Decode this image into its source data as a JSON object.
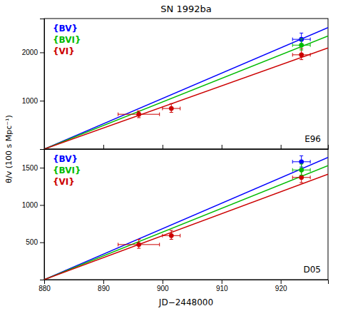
{
  "chart_data": [
    {
      "type": "line",
      "title": "SN 1992ba",
      "ylabel": "θ/v  (100 s Mpc⁻¹)",
      "xlim": [
        880,
        928
      ],
      "xticks": [
        880,
        890,
        900,
        910,
        920
      ],
      "ylim": [
        0,
        2700
      ],
      "yticks": [
        1000,
        2000
      ],
      "tick_labels": "y",
      "legend": "upper left",
      "annotations": [
        "E96"
      ],
      "series": [
        {
          "name": "{BV}",
          "type": "line",
          "color": "#0000ff",
          "x": [
            880,
            928
          ],
          "values": [
            0,
            2514.25
          ]
        },
        {
          "name": "{BVI}",
          "type": "line",
          "color": "#00bb00",
          "x": [
            880,
            928
          ],
          "values": [
            0,
            2339.04
          ]
        },
        {
          "name": "{VI}",
          "type": "line",
          "color": "#cc0000",
          "x": [
            880,
            928
          ],
          "values": [
            0,
            2091.96
          ]
        },
        {
          "type": "scatter",
          "color": "#cc0000",
          "marker": "circle",
          "x": [
            896.0,
            901.5,
            923.5
          ],
          "values": [
            720,
            840,
            1950
          ],
          "xerr": [
            3.5,
            1.5,
            1.5
          ],
          "yerr_lo": [
            70,
            80,
            100
          ],
          "yerr_hi": [
            70,
            100,
            130
          ]
        },
        {
          "type": "scatter",
          "color": "#0000ff",
          "marker": "circle",
          "x": [
            923.5
          ],
          "values": [
            2270
          ],
          "xerr": [
            1.5
          ],
          "yerr_lo": [
            100
          ],
          "yerr_hi": [
            130
          ]
        },
        {
          "type": "scatter",
          "color": "#00bb00",
          "marker": "circle",
          "x": [
            923.5
          ],
          "values": [
            2150
          ],
          "xerr": [
            1.5
          ],
          "yerr_lo": [
            100
          ],
          "yerr_hi": [
            130
          ]
        }
      ]
    },
    {
      "type": "line",
      "xlabel": "JD−2448000",
      "xlim": [
        880,
        928
      ],
      "xticks": [
        880,
        890,
        900,
        910,
        920
      ],
      "ylim": [
        0,
        1750
      ],
      "yticks": [
        500,
        1000,
        1500
      ],
      "legend": "upper left",
      "annotations": [
        "D05"
      ],
      "series": [
        {
          "name": "{BV}",
          "type": "line",
          "color": "#0000ff",
          "x": [
            880,
            928
          ],
          "values": [
            0,
            1637.6
          ]
        },
        {
          "name": "{BVI}",
          "type": "line",
          "color": "#00bb00",
          "x": [
            880,
            928
          ],
          "values": [
            0,
            1528.35
          ]
        },
        {
          "name": "{VI}",
          "type": "line",
          "color": "#cc0000",
          "x": [
            880,
            928
          ],
          "values": [
            0,
            1412.52
          ]
        },
        {
          "type": "scatter",
          "color": "#cc0000",
          "marker": "circle",
          "x": [
            896.0,
            901.5,
            923.5
          ],
          "values": [
            470,
            590,
            1370
          ],
          "xerr": [
            3.5,
            1.5,
            1.5
          ],
          "yerr_lo": [
            50,
            50,
            70
          ],
          "yerr_hi": [
            70,
            70,
            80
          ]
        },
        {
          "type": "scatter",
          "color": "#0000ff",
          "marker": "circle",
          "x": [
            923.5
          ],
          "values": [
            1580
          ],
          "xerr": [
            1.5
          ],
          "yerr_lo": [
            70
          ],
          "yerr_hi": [
            80
          ]
        },
        {
          "type": "scatter",
          "color": "#00bb00",
          "marker": "circle",
          "x": [
            923.5
          ],
          "values": [
            1470
          ],
          "xerr": [
            1.5
          ],
          "yerr_lo": [
            70
          ],
          "yerr_hi": [
            80
          ]
        }
      ]
    }
  ]
}
